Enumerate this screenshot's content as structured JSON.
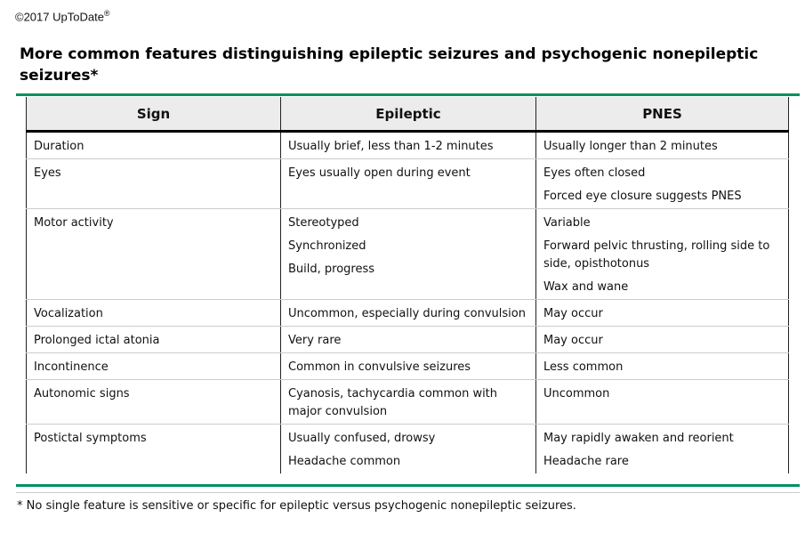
{
  "copyright": "©2017 UpToDate",
  "copyright_mark": "®",
  "title": "More common features distinguishing epileptic seizures and psychogenic nonepileptic seizures*",
  "columns": [
    "Sign",
    "Epileptic",
    "PNES"
  ],
  "rows": [
    {
      "sign": "Duration",
      "epileptic": [
        "Usually brief, less than 1-2 minutes"
      ],
      "pnes": [
        "Usually longer than 2 minutes"
      ]
    },
    {
      "sign": "Eyes",
      "epileptic": [
        "Eyes usually open during event"
      ],
      "pnes": [
        "Eyes often closed",
        "Forced eye closure suggests PNES"
      ]
    },
    {
      "sign": "Motor activity",
      "epileptic": [
        "Stereotyped",
        "Synchronized",
        "Build, progress"
      ],
      "pnes": [
        "Variable",
        "Forward pelvic thrusting, rolling side to side, opisthotonus",
        "Wax and wane"
      ]
    },
    {
      "sign": "Vocalization",
      "epileptic": [
        "Uncommon, especially during convulsion"
      ],
      "pnes": [
        "May occur"
      ]
    },
    {
      "sign": "Prolonged ictal atonia",
      "epileptic": [
        "Very rare"
      ],
      "pnes": [
        "May occur"
      ]
    },
    {
      "sign": "Incontinence",
      "epileptic": [
        "Common in convulsive seizures"
      ],
      "pnes": [
        "Less common"
      ]
    },
    {
      "sign": "Autonomic signs",
      "epileptic": [
        "Cyanosis, tachycardia common with major convulsion"
      ],
      "pnes": [
        "Uncommon"
      ]
    },
    {
      "sign": "Postictal symptoms",
      "epileptic": [
        "Usually confused, drowsy",
        "Headache common"
      ],
      "pnes": [
        "May rapidly awaken and reorient",
        "Headache rare"
      ]
    }
  ],
  "footnote": "* No single feature is sensitive or specific for epileptic versus psychogenic nonepileptic seizures.",
  "colors": {
    "accent_green": "#00915e",
    "header_bg": "#ececec"
  }
}
